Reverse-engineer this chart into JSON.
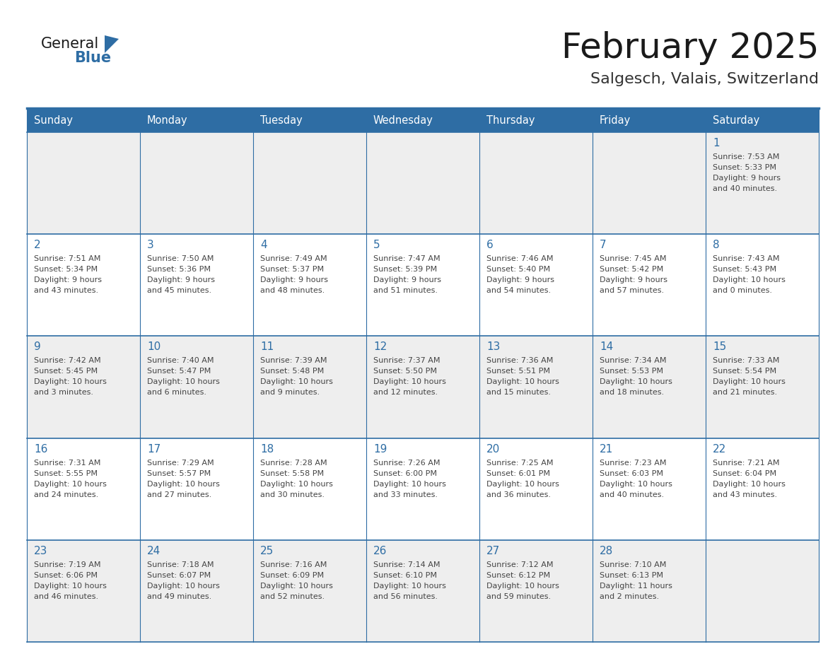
{
  "title": "February 2025",
  "subtitle": "Salgesch, Valais, Switzerland",
  "days_of_week": [
    "Sunday",
    "Monday",
    "Tuesday",
    "Wednesday",
    "Thursday",
    "Friday",
    "Saturday"
  ],
  "header_bg": "#2E6DA4",
  "header_text": "#FFFFFF",
  "cell_bg_odd": "#EEEEEE",
  "cell_bg_even": "#FFFFFF",
  "border_color": "#2E6DA4",
  "text_color": "#444444",
  "day_number_color": "#2E6DA4",
  "title_color": "#1a1a1a",
  "subtitle_color": "#333333",
  "calendar_data": [
    [
      null,
      null,
      null,
      null,
      null,
      null,
      {
        "day": "1",
        "sunrise": "7:53 AM",
        "sunset": "5:33 PM",
        "daylight1": "9 hours",
        "daylight2": "and 40 minutes."
      }
    ],
    [
      {
        "day": "2",
        "sunrise": "7:51 AM",
        "sunset": "5:34 PM",
        "daylight1": "9 hours",
        "daylight2": "and 43 minutes."
      },
      {
        "day": "3",
        "sunrise": "7:50 AM",
        "sunset": "5:36 PM",
        "daylight1": "9 hours",
        "daylight2": "and 45 minutes."
      },
      {
        "day": "4",
        "sunrise": "7:49 AM",
        "sunset": "5:37 PM",
        "daylight1": "9 hours",
        "daylight2": "and 48 minutes."
      },
      {
        "day": "5",
        "sunrise": "7:47 AM",
        "sunset": "5:39 PM",
        "daylight1": "9 hours",
        "daylight2": "and 51 minutes."
      },
      {
        "day": "6",
        "sunrise": "7:46 AM",
        "sunset": "5:40 PM",
        "daylight1": "9 hours",
        "daylight2": "and 54 minutes."
      },
      {
        "day": "7",
        "sunrise": "7:45 AM",
        "sunset": "5:42 PM",
        "daylight1": "9 hours",
        "daylight2": "and 57 minutes."
      },
      {
        "day": "8",
        "sunrise": "7:43 AM",
        "sunset": "5:43 PM",
        "daylight1": "10 hours",
        "daylight2": "and 0 minutes."
      }
    ],
    [
      {
        "day": "9",
        "sunrise": "7:42 AM",
        "sunset": "5:45 PM",
        "daylight1": "10 hours",
        "daylight2": "and 3 minutes."
      },
      {
        "day": "10",
        "sunrise": "7:40 AM",
        "sunset": "5:47 PM",
        "daylight1": "10 hours",
        "daylight2": "and 6 minutes."
      },
      {
        "day": "11",
        "sunrise": "7:39 AM",
        "sunset": "5:48 PM",
        "daylight1": "10 hours",
        "daylight2": "and 9 minutes."
      },
      {
        "day": "12",
        "sunrise": "7:37 AM",
        "sunset": "5:50 PM",
        "daylight1": "10 hours",
        "daylight2": "and 12 minutes."
      },
      {
        "day": "13",
        "sunrise": "7:36 AM",
        "sunset": "5:51 PM",
        "daylight1": "10 hours",
        "daylight2": "and 15 minutes."
      },
      {
        "day": "14",
        "sunrise": "7:34 AM",
        "sunset": "5:53 PM",
        "daylight1": "10 hours",
        "daylight2": "and 18 minutes."
      },
      {
        "day": "15",
        "sunrise": "7:33 AM",
        "sunset": "5:54 PM",
        "daylight1": "10 hours",
        "daylight2": "and 21 minutes."
      }
    ],
    [
      {
        "day": "16",
        "sunrise": "7:31 AM",
        "sunset": "5:55 PM",
        "daylight1": "10 hours",
        "daylight2": "and 24 minutes."
      },
      {
        "day": "17",
        "sunrise": "7:29 AM",
        "sunset": "5:57 PM",
        "daylight1": "10 hours",
        "daylight2": "and 27 minutes."
      },
      {
        "day": "18",
        "sunrise": "7:28 AM",
        "sunset": "5:58 PM",
        "daylight1": "10 hours",
        "daylight2": "and 30 minutes."
      },
      {
        "day": "19",
        "sunrise": "7:26 AM",
        "sunset": "6:00 PM",
        "daylight1": "10 hours",
        "daylight2": "and 33 minutes."
      },
      {
        "day": "20",
        "sunrise": "7:25 AM",
        "sunset": "6:01 PM",
        "daylight1": "10 hours",
        "daylight2": "and 36 minutes."
      },
      {
        "day": "21",
        "sunrise": "7:23 AM",
        "sunset": "6:03 PM",
        "daylight1": "10 hours",
        "daylight2": "and 40 minutes."
      },
      {
        "day": "22",
        "sunrise": "7:21 AM",
        "sunset": "6:04 PM",
        "daylight1": "10 hours",
        "daylight2": "and 43 minutes."
      }
    ],
    [
      {
        "day": "23",
        "sunrise": "7:19 AM",
        "sunset": "6:06 PM",
        "daylight1": "10 hours",
        "daylight2": "and 46 minutes."
      },
      {
        "day": "24",
        "sunrise": "7:18 AM",
        "sunset": "6:07 PM",
        "daylight1": "10 hours",
        "daylight2": "and 49 minutes."
      },
      {
        "day": "25",
        "sunrise": "7:16 AM",
        "sunset": "6:09 PM",
        "daylight1": "10 hours",
        "daylight2": "and 52 minutes."
      },
      {
        "day": "26",
        "sunrise": "7:14 AM",
        "sunset": "6:10 PM",
        "daylight1": "10 hours",
        "daylight2": "and 56 minutes."
      },
      {
        "day": "27",
        "sunrise": "7:12 AM",
        "sunset": "6:12 PM",
        "daylight1": "10 hours",
        "daylight2": "and 59 minutes."
      },
      {
        "day": "28",
        "sunrise": "7:10 AM",
        "sunset": "6:13 PM",
        "daylight1": "11 hours",
        "daylight2": "and 2 minutes."
      },
      null
    ]
  ]
}
